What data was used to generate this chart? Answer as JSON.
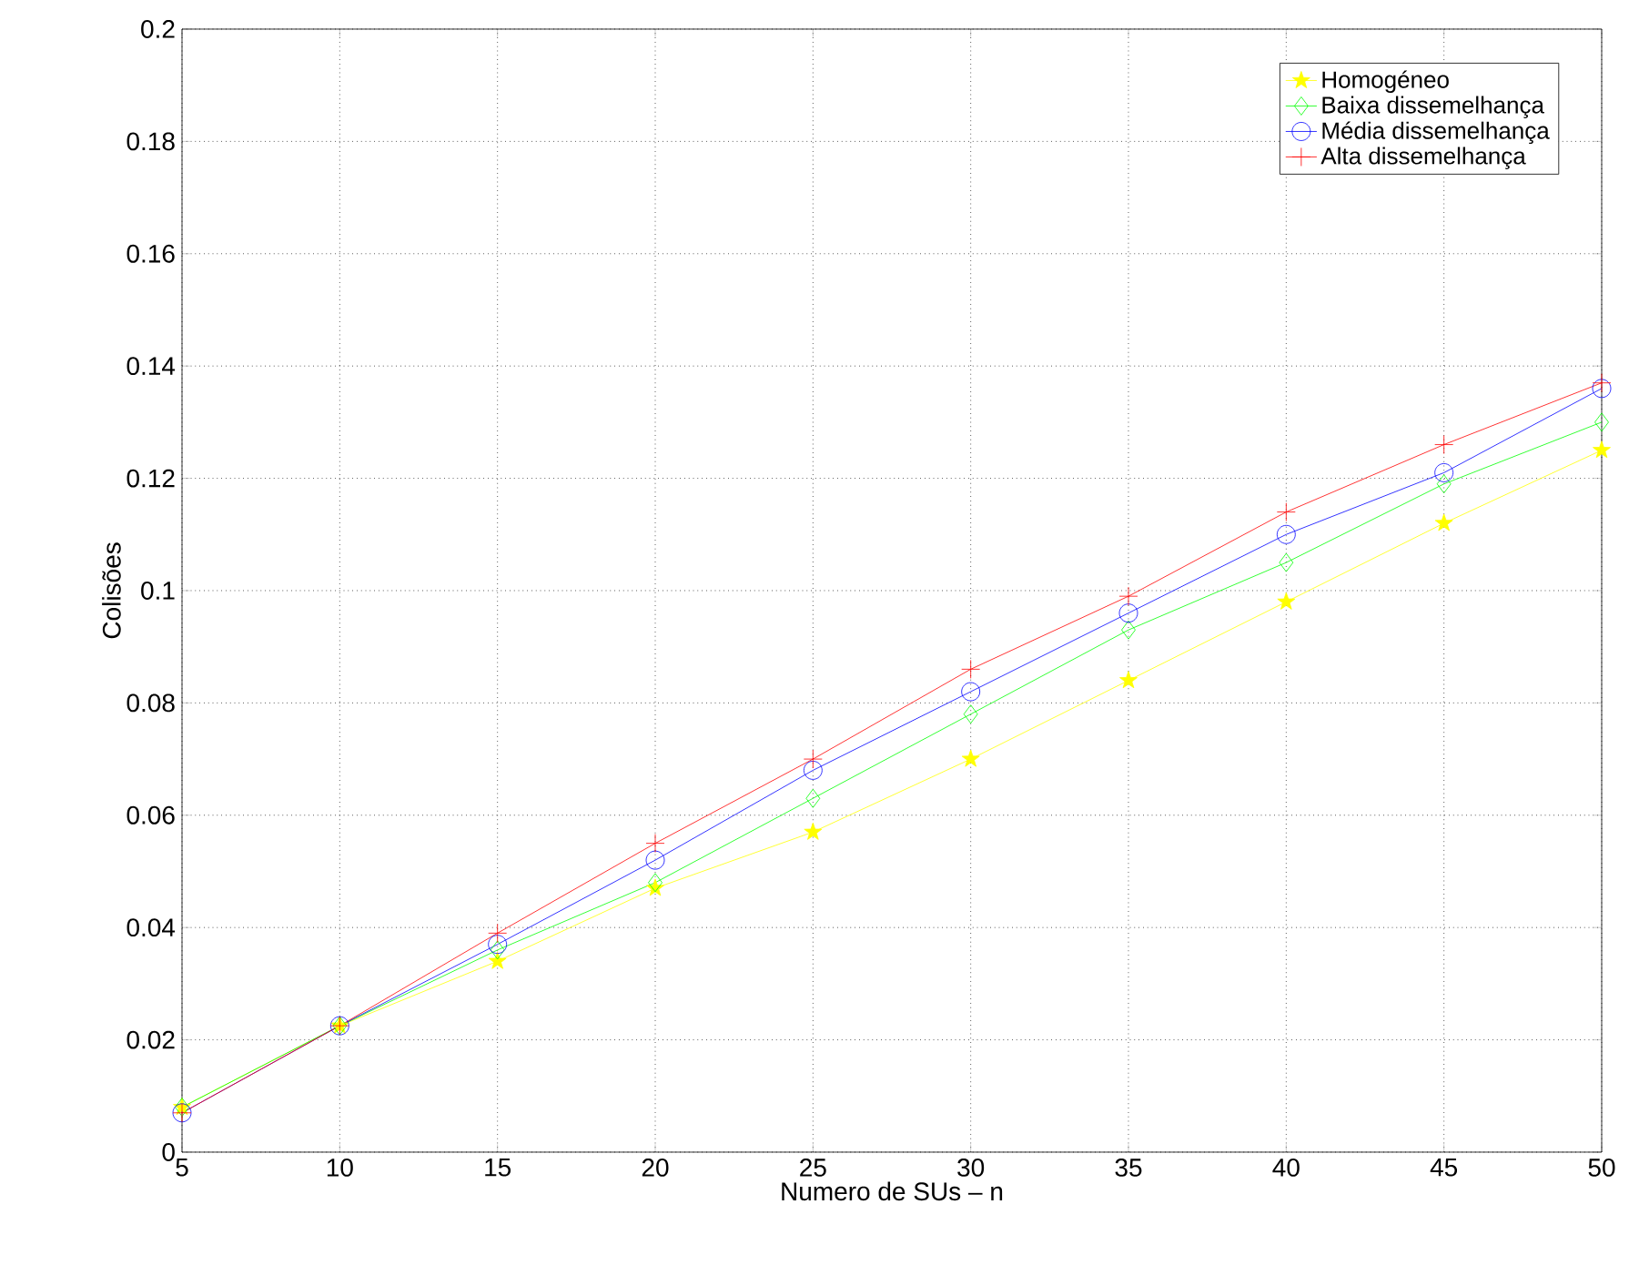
{
  "chart_data": {
    "type": "line",
    "xlabel": "Numero de SUs – n",
    "ylabel": "Colisões",
    "x": [
      5,
      10,
      15,
      20,
      25,
      30,
      35,
      40,
      45,
      50
    ],
    "series": [
      {
        "name": "Homogéneo",
        "color": "#ffff00",
        "marker": "star",
        "values": [
          0.008,
          0.0225,
          0.034,
          0.047,
          0.057,
          0.07,
          0.084,
          0.098,
          0.112,
          0.125
        ]
      },
      {
        "name": "Baixa dissemelhança",
        "color": "#00ff00",
        "marker": "diamond",
        "values": [
          0.008,
          0.0225,
          0.036,
          0.048,
          0.063,
          0.078,
          0.093,
          0.105,
          0.119,
          0.13
        ]
      },
      {
        "name": "Média dissemelhança",
        "color": "#0000ff",
        "marker": "circle",
        "values": [
          0.007,
          0.0225,
          0.037,
          0.052,
          0.068,
          0.082,
          0.096,
          0.11,
          0.121,
          0.136
        ]
      },
      {
        "name": "Alta dissemelhança",
        "color": "#ff0000",
        "marker": "cross",
        "values": [
          0.007,
          0.0225,
          0.039,
          0.055,
          0.07,
          0.086,
          0.099,
          0.114,
          0.126,
          0.137
        ]
      }
    ],
    "xlim": [
      5,
      50
    ],
    "xticks": [
      5,
      10,
      15,
      20,
      25,
      30,
      35,
      40,
      45,
      50
    ],
    "ylim": [
      0,
      0.2
    ],
    "yticks": [
      0,
      0.02,
      0.04,
      0.06,
      0.08,
      0.1,
      0.12,
      0.14,
      0.16,
      0.18,
      0.2
    ],
    "grid": true,
    "legend": "top right",
    "line_style": "solid"
  }
}
